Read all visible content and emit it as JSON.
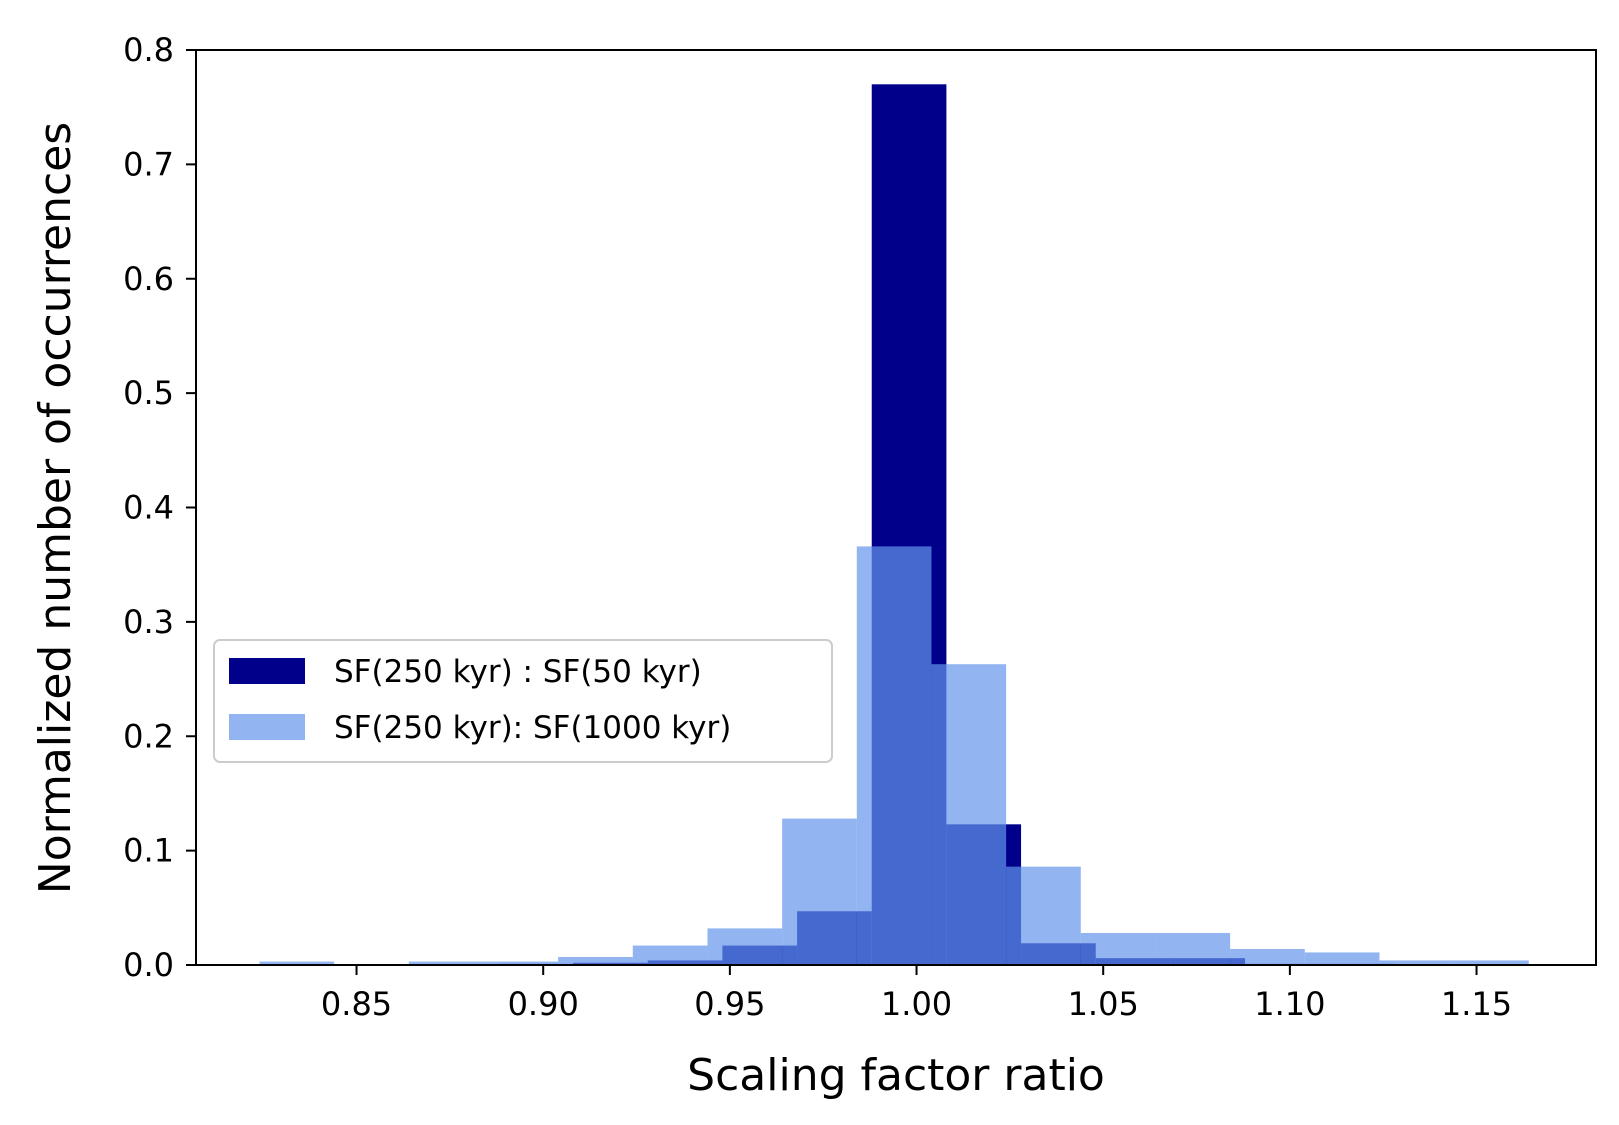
{
  "chart_data": {
    "type": "bar",
    "xlabel": "Scaling factor ratio",
    "ylabel": "Normalized number of occurrences",
    "xlim": [
      0.807,
      1.182
    ],
    "ylim": [
      0,
      0.8
    ],
    "xticks": [
      "0.85",
      "0.90",
      "0.95",
      "1.00",
      "1.05",
      "1.10",
      "1.15"
    ],
    "yticks": [
      "0.0",
      "0.1",
      "0.2",
      "0.3",
      "0.4",
      "0.5",
      "0.6",
      "0.7",
      "0.8"
    ],
    "legend_position": "center-left",
    "series": [
      {
        "name": "SF(250 kyr) : SF(50 kyr)",
        "color": "#00008b",
        "opacity": 1,
        "bins": [
          {
            "x0": 0.888,
            "x1": 0.908,
            "y": 0.001
          },
          {
            "x0": 0.908,
            "x1": 0.928,
            "y": 0.002
          },
          {
            "x0": 0.928,
            "x1": 0.948,
            "y": 0.004
          },
          {
            "x0": 0.948,
            "x1": 0.968,
            "y": 0.017
          },
          {
            "x0": 0.968,
            "x1": 0.988,
            "y": 0.047
          },
          {
            "x0": 0.988,
            "x1": 1.008,
            "y": 0.77
          },
          {
            "x0": 1.008,
            "x1": 1.028,
            "y": 0.123
          },
          {
            "x0": 1.028,
            "x1": 1.048,
            "y": 0.019
          },
          {
            "x0": 1.048,
            "x1": 1.068,
            "y": 0.006
          },
          {
            "x0": 1.068,
            "x1": 1.088,
            "y": 0.006
          },
          {
            "x0": 1.088,
            "x1": 1.108,
            "y": 0.001
          },
          {
            "x0": 1.108,
            "x1": 1.128,
            "y": 0.001
          }
        ]
      },
      {
        "name": "SF(250 kyr): SF(1000 kyr)",
        "color": "#6495ed",
        "opacity": 0.7,
        "bins": [
          {
            "x0": 0.824,
            "x1": 0.844,
            "y": 0.003
          },
          {
            "x0": 0.844,
            "x1": 0.864,
            "y": 0.0
          },
          {
            "x0": 0.864,
            "x1": 0.884,
            "y": 0.003
          },
          {
            "x0": 0.884,
            "x1": 0.904,
            "y": 0.003
          },
          {
            "x0": 0.904,
            "x1": 0.924,
            "y": 0.007
          },
          {
            "x0": 0.924,
            "x1": 0.944,
            "y": 0.017
          },
          {
            "x0": 0.944,
            "x1": 0.964,
            "y": 0.032
          },
          {
            "x0": 0.964,
            "x1": 0.984,
            "y": 0.128
          },
          {
            "x0": 0.984,
            "x1": 1.004,
            "y": 0.366
          },
          {
            "x0": 1.004,
            "x1": 1.024,
            "y": 0.263
          },
          {
            "x0": 1.024,
            "x1": 1.044,
            "y": 0.086
          },
          {
            "x0": 1.044,
            "x1": 1.064,
            "y": 0.028
          },
          {
            "x0": 1.064,
            "x1": 1.084,
            "y": 0.028
          },
          {
            "x0": 1.084,
            "x1": 1.104,
            "y": 0.014
          },
          {
            "x0": 1.104,
            "x1": 1.124,
            "y": 0.011
          },
          {
            "x0": 1.124,
            "x1": 1.144,
            "y": 0.004
          },
          {
            "x0": 1.144,
            "x1": 1.164,
            "y": 0.004
          }
        ]
      }
    ]
  }
}
